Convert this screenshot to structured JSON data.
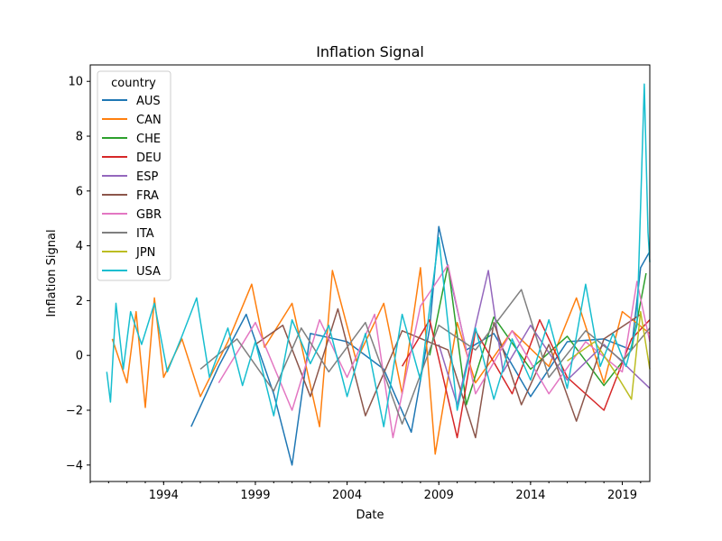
{
  "chart_data": {
    "type": "line",
    "title": "Inflation Signal",
    "xlabel": "Date",
    "ylabel": "Inflation Signal",
    "xlim": [
      1990.0,
      2020.5
    ],
    "ylim": [
      -4.6,
      10.6
    ],
    "x_ticks": [
      1994,
      1999,
      2004,
      2009,
      2014,
      2019
    ],
    "x_tick_labels": [
      "1994",
      "1999",
      "2004",
      "2009",
      "2014",
      "2019"
    ],
    "y_ticks": [
      -4,
      -2,
      0,
      2,
      4,
      6,
      8,
      10
    ],
    "y_tick_labels": [
      "−4",
      "−2",
      "0",
      "2",
      "4",
      "6",
      "8",
      "10"
    ],
    "grid": false,
    "legend": {
      "title": "country",
      "placement": "top-left"
    },
    "series": [
      {
        "name": "AUS",
        "color": "#1f77b4",
        "x": [
          1995.5,
          1997.0,
          1998.5,
          2000.0,
          2001.0,
          2002.0,
          2004.0,
          2006.0,
          2007.5,
          2008.5,
          2009.0,
          2010.5,
          2012.0,
          2014.0,
          2016.0,
          2018.0,
          2019.5,
          2020.0,
          2020.5
        ],
        "y": [
          -2.6,
          -0.4,
          1.5,
          -1.4,
          -4.0,
          0.8,
          0.5,
          -0.5,
          -2.8,
          1.0,
          4.7,
          0.2,
          0.8,
          -1.5,
          0.5,
          0.6,
          0.2,
          3.2,
          3.8
        ]
      },
      {
        "name": "CAN",
        "color": "#ff7f0e",
        "x": [
          1991.2,
          1992.0,
          1992.5,
          1993.0,
          1993.5,
          1994.0,
          1995.0,
          1996.0,
          1997.5,
          1998.8,
          1999.5,
          2001.0,
          2002.5,
          2003.2,
          2004.5,
          2006.0,
          2007.0,
          2008.0,
          2008.8,
          2010.0,
          2011.0,
          2013.0,
          2015.0,
          2016.5,
          2018.0,
          2019.0,
          2020.5
        ],
        "y": [
          0.6,
          -1.0,
          1.6,
          -1.9,
          2.1,
          -0.8,
          0.6,
          -1.5,
          0.5,
          2.6,
          0.3,
          1.9,
          -2.6,
          3.1,
          -0.2,
          1.9,
          -1.4,
          3.2,
          -3.6,
          1.2,
          -1.0,
          0.9,
          -0.4,
          2.1,
          -1.0,
          1.6,
          0.8
        ]
      },
      {
        "name": "CHE",
        "color": "#2ca02c",
        "x": [
          2008.5,
          2009.5,
          2010.5,
          2012.0,
          2014.0,
          2016.0,
          2018.0,
          2019.5,
          2020.3
        ],
        "y": [
          0.0,
          3.3,
          -1.8,
          1.4,
          -0.5,
          0.7,
          -1.1,
          0.2,
          3.0
        ]
      },
      {
        "name": "DEU",
        "color": "#d62728",
        "x": [
          2007.0,
          2008.5,
          2010.0,
          2011.0,
          2013.0,
          2014.5,
          2016.0,
          2018.0,
          2019.5,
          2020.5
        ],
        "y": [
          -0.4,
          1.3,
          -3.0,
          0.9,
          -1.4,
          1.3,
          -0.8,
          -2.0,
          0.6,
          1.3
        ]
      },
      {
        "name": "ESP",
        "color": "#9467bd",
        "x": [
          2009.0,
          2010.0,
          2011.7,
          2012.5,
          2014.0,
          2016.0,
          2018.0,
          2020.5
        ],
        "y": [
          0.4,
          -1.8,
          3.1,
          -0.6,
          1.1,
          -0.9,
          0.4,
          -1.2
        ]
      },
      {
        "name": "FRA",
        "color": "#8c564b",
        "x": [
          1999.0,
          2000.5,
          2002.0,
          2003.5,
          2005.0,
          2007.0,
          2009.5,
          2011.0,
          2012.0,
          2013.5,
          2015.0,
          2016.5,
          2018.0,
          2020.0
        ],
        "y": [
          0.4,
          1.1,
          -1.5,
          1.7,
          -2.2,
          0.9,
          0.2,
          -3.0,
          1.2,
          -1.8,
          0.4,
          -2.4,
          0.6,
          1.5
        ]
      },
      {
        "name": "GBR",
        "color": "#e377c2",
        "x": [
          1997.0,
          1999.0,
          2001.0,
          2002.5,
          2004.0,
          2005.5,
          2006.5,
          2008.0,
          2009.5,
          2011.0,
          2013.0,
          2015.0,
          2017.0,
          2019.0,
          2019.8,
          2020.5
        ],
        "y": [
          -1.0,
          1.2,
          -2.0,
          1.3,
          -0.8,
          1.5,
          -3.0,
          1.8,
          3.3,
          -1.4,
          0.9,
          -1.4,
          0.5,
          -0.6,
          2.7,
          0.5
        ]
      },
      {
        "name": "ITA",
        "color": "#7f7f7f",
        "x": [
          1996.0,
          1998.0,
          2000.0,
          2001.5,
          2003.0,
          2005.0,
          2007.0,
          2009.0,
          2011.0,
          2013.5,
          2015.0,
          2017.0,
          2019.0,
          2020.5
        ],
        "y": [
          -0.5,
          0.6,
          -1.3,
          1.0,
          -0.6,
          1.2,
          -2.5,
          1.1,
          0.2,
          2.4,
          -0.8,
          0.9,
          -0.2,
          1.0
        ]
      },
      {
        "name": "JPN",
        "color": "#bcbd22",
        "x": [
          2016.0,
          2017.5,
          2018.5,
          2019.5,
          2020.0,
          2020.5
        ],
        "y": [
          -0.2,
          0.5,
          -0.5,
          -1.6,
          1.6,
          -0.5
        ]
      },
      {
        "name": "USA",
        "color": "#17becf",
        "x": [
          1990.9,
          1991.1,
          1991.4,
          1991.8,
          1992.2,
          1992.8,
          1993.5,
          1994.2,
          1995.0,
          1995.8,
          1996.5,
          1997.5,
          1998.3,
          1999.0,
          2000.0,
          2001.0,
          2002.0,
          2003.0,
          2004.0,
          2005.0,
          2006.0,
          2007.0,
          2008.0,
          2009.0,
          2010.0,
          2011.0,
          2012.0,
          2013.0,
          2014.0,
          2015.0,
          2016.0,
          2017.0,
          2017.8,
          2018.5,
          2019.2,
          2019.8,
          2020.2,
          2020.4,
          2020.5
        ],
        "y": [
          -0.6,
          -1.7,
          1.9,
          -0.5,
          1.6,
          0.4,
          1.9,
          -0.6,
          0.7,
          2.1,
          -0.8,
          1.0,
          -1.1,
          0.5,
          -2.2,
          1.3,
          -0.3,
          1.1,
          -1.5,
          0.8,
          -2.6,
          1.5,
          -0.9,
          4.3,
          -2.0,
          1.0,
          -1.6,
          0.6,
          -0.9,
          1.3,
          -1.2,
          2.6,
          -0.4,
          0.8,
          -0.4,
          1.1,
          9.9,
          4.5,
          3.4
        ]
      }
    ]
  }
}
